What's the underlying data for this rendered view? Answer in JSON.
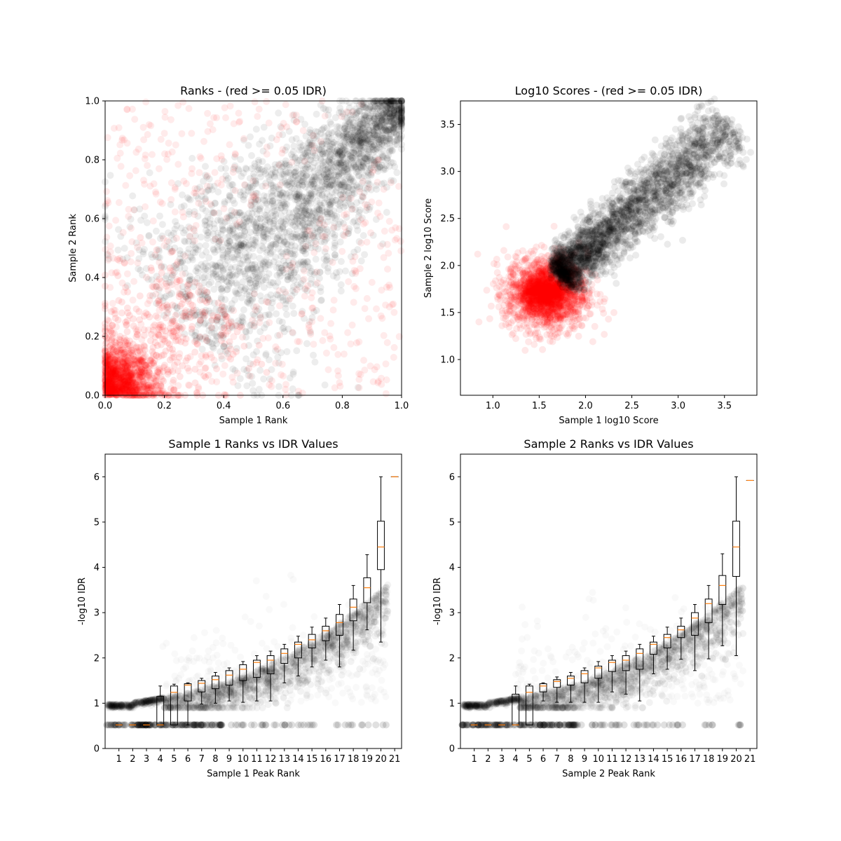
{
  "chart_data": [
    {
      "type": "scatter",
      "title": "Ranks - (red >= 0.05 IDR)",
      "xlabel": "Sample 1 Rank",
      "ylabel": "Sample 2 Rank",
      "xlim": [
        0,
        1
      ],
      "ylim": [
        0,
        1
      ],
      "xticks": [
        "0.0",
        "0.2",
        "0.4",
        "0.6",
        "0.8",
        "1.0"
      ],
      "yticks": [
        "0.0",
        "0.2",
        "0.4",
        "0.6",
        "0.8",
        "1.0"
      ],
      "grid": false,
      "colors": {
        "pass": "#000000",
        "fail": "#ff0000"
      },
      "series": [
        {
          "color": "fail",
          "approx_points": 2000,
          "description_free": true,
          "clusters": [
            {
              "x": 0.07,
              "y": 0.07,
              "spread": 0.08,
              "share": 0.55
            },
            {
              "x": 0.2,
              "y": 0.2,
              "spread": 0.12,
              "share": 0.2
            },
            {
              "x": 0.5,
              "y": 0.5,
              "spread": 0.35,
              "share": 0.25
            }
          ]
        },
        {
          "color": "pass",
          "approx_points": 4500,
          "trend": {
            "from": [
              0.25,
              0.25
            ],
            "to": [
              0.99,
              0.99
            ],
            "width": 0.12
          }
        }
      ]
    },
    {
      "type": "scatter",
      "title": "Log10 Scores - (red >= 0.05 IDR)",
      "xlabel": "Sample 1 log10 Score",
      "ylabel": "Sample 2 log10 Score",
      "xlim": [
        0.65,
        3.85
      ],
      "ylim": [
        0.62,
        3.75
      ],
      "xticks": [
        "1.0",
        "1.5",
        "2.0",
        "2.5",
        "3.0",
        "3.5"
      ],
      "yticks": [
        "1.0",
        "1.5",
        "2.0",
        "2.5",
        "3.0",
        "3.5"
      ],
      "grid": false,
      "colors": {
        "pass": "#000000",
        "fail": "#ff0000"
      },
      "series": [
        {
          "color": "fail",
          "approx_points": 2000,
          "center": [
            1.55,
            1.72
          ],
          "spread": 0.25
        },
        {
          "color": "pass",
          "approx_points": 4500,
          "trend": {
            "from": [
              1.7,
              1.9
            ],
            "to": [
              3.6,
              3.5
            ],
            "width": 0.15
          }
        }
      ]
    },
    {
      "type": "box",
      "title": "Sample 1 Ranks vs IDR Values",
      "xlabel": "Sample 1 Peak Rank",
      "ylabel": "-log10 IDR",
      "ylim": [
        0,
        6.5
      ],
      "xticks": [
        "1",
        "2",
        "3",
        "4",
        "5",
        "6",
        "7",
        "8",
        "9",
        "10",
        "11",
        "12",
        "13",
        "14",
        "15",
        "16",
        "17",
        "18",
        "19",
        "20",
        "21"
      ],
      "yticks": [
        "0",
        "1",
        "2",
        "3",
        "4",
        "5",
        "6"
      ],
      "boxes": [
        {
          "bin": 1,
          "q1": 0.52,
          "med": 0.52,
          "q3": 0.52,
          "lo": 0.52,
          "hi": 0.52
        },
        {
          "bin": 2,
          "q1": 0.52,
          "med": 0.52,
          "q3": 0.52,
          "lo": 0.52,
          "hi": 0.52
        },
        {
          "bin": 3,
          "q1": 0.52,
          "med": 0.52,
          "q3": 0.52,
          "lo": 0.52,
          "hi": 0.52
        },
        {
          "bin": 4,
          "q1": 0.52,
          "med": 0.52,
          "q3": 1.15,
          "lo": 0.52,
          "hi": 1.38
        },
        {
          "bin": 5,
          "q1": 0.52,
          "med": 1.24,
          "q3": 1.38,
          "lo": 0.52,
          "hi": 1.42
        },
        {
          "bin": 6,
          "q1": 1.05,
          "med": 1.4,
          "q3": 1.43,
          "lo": 0.52,
          "hi": 1.45
        },
        {
          "bin": 7,
          "q1": 1.25,
          "med": 1.44,
          "q3": 1.5,
          "lo": 0.98,
          "hi": 1.55
        },
        {
          "bin": 8,
          "q1": 1.32,
          "med": 1.52,
          "q3": 1.6,
          "lo": 1.0,
          "hi": 1.68
        },
        {
          "bin": 9,
          "q1": 1.4,
          "med": 1.62,
          "q3": 1.72,
          "lo": 1.05,
          "hi": 1.78
        },
        {
          "bin": 10,
          "q1": 1.5,
          "med": 1.75,
          "q3": 1.85,
          "lo": 1.02,
          "hi": 1.92
        },
        {
          "bin": 11,
          "q1": 1.57,
          "med": 1.9,
          "q3": 1.95,
          "lo": 1.05,
          "hi": 2.05
        },
        {
          "bin": 12,
          "q1": 1.65,
          "med": 1.95,
          "q3": 2.05,
          "lo": 1.05,
          "hi": 2.15
        },
        {
          "bin": 13,
          "q1": 1.88,
          "med": 2.1,
          "q3": 2.2,
          "lo": 1.45,
          "hi": 2.3
        },
        {
          "bin": 14,
          "q1": 2.0,
          "med": 2.3,
          "q3": 2.35,
          "lo": 1.6,
          "hi": 2.48
        },
        {
          "bin": 15,
          "q1": 2.22,
          "med": 2.4,
          "q3": 2.52,
          "lo": 1.8,
          "hi": 2.68
        },
        {
          "bin": 16,
          "q1": 2.38,
          "med": 2.6,
          "q3": 2.7,
          "lo": 1.95,
          "hi": 2.88
        },
        {
          "bin": 17,
          "q1": 2.5,
          "med": 2.78,
          "q3": 2.96,
          "lo": 1.8,
          "hi": 3.18
        },
        {
          "bin": 18,
          "q1": 2.82,
          "med": 3.12,
          "q3": 3.3,
          "lo": 2.17,
          "hi": 3.6
        },
        {
          "bin": 19,
          "q1": 3.22,
          "med": 3.55,
          "q3": 3.77,
          "lo": 2.62,
          "hi": 4.28
        },
        {
          "bin": 20,
          "q1": 3.95,
          "med": 4.45,
          "q3": 5.02,
          "lo": 2.35,
          "hi": 6.0
        },
        {
          "bin": 21,
          "q1": 6.0,
          "med": 6.0,
          "q3": 6.0,
          "lo": 6.0,
          "hi": 6.0
        }
      ]
    },
    {
      "type": "box",
      "title": "Sample 2 Ranks vs IDR Values",
      "xlabel": "Sample 2 Peak Rank",
      "ylabel": "-log10 IDR",
      "ylim": [
        0,
        6.5
      ],
      "xticks": [
        "1",
        "2",
        "3",
        "4",
        "5",
        "6",
        "7",
        "8",
        "9",
        "10",
        "11",
        "12",
        "13",
        "14",
        "15",
        "16",
        "17",
        "18",
        "19",
        "20",
        "21"
      ],
      "yticks": [
        "0",
        "1",
        "2",
        "3",
        "4",
        "5",
        "6"
      ],
      "boxes": [
        {
          "bin": 1,
          "q1": 0.52,
          "med": 0.52,
          "q3": 0.52,
          "lo": 0.52,
          "hi": 0.52
        },
        {
          "bin": 2,
          "q1": 0.52,
          "med": 0.52,
          "q3": 0.52,
          "lo": 0.52,
          "hi": 0.52
        },
        {
          "bin": 3,
          "q1": 0.52,
          "med": 0.52,
          "q3": 0.52,
          "lo": 0.52,
          "hi": 0.52
        },
        {
          "bin": 4,
          "q1": 0.52,
          "med": 0.52,
          "q3": 1.2,
          "lo": 0.52,
          "hi": 1.38
        },
        {
          "bin": 5,
          "q1": 0.52,
          "med": 1.24,
          "q3": 1.38,
          "lo": 0.52,
          "hi": 1.42
        },
        {
          "bin": 6,
          "q1": 1.25,
          "med": 1.38,
          "q3": 1.43,
          "lo": 1.05,
          "hi": 1.45
        },
        {
          "bin": 7,
          "q1": 1.35,
          "med": 1.48,
          "q3": 1.52,
          "lo": 1.02,
          "hi": 1.58
        },
        {
          "bin": 8,
          "q1": 1.4,
          "med": 1.55,
          "q3": 1.6,
          "lo": 1.02,
          "hi": 1.68
        },
        {
          "bin": 9,
          "q1": 1.45,
          "med": 1.65,
          "q3": 1.72,
          "lo": 1.02,
          "hi": 1.78
        },
        {
          "bin": 10,
          "q1": 1.55,
          "med": 1.78,
          "q3": 1.82,
          "lo": 1.02,
          "hi": 1.92
        },
        {
          "bin": 11,
          "q1": 1.7,
          "med": 1.9,
          "q3": 1.95,
          "lo": 1.25,
          "hi": 2.05
        },
        {
          "bin": 12,
          "q1": 1.72,
          "med": 1.95,
          "q3": 2.05,
          "lo": 1.2,
          "hi": 2.15
        },
        {
          "bin": 13,
          "q1": 1.75,
          "med": 2.1,
          "q3": 2.2,
          "lo": 1.05,
          "hi": 2.3
        },
        {
          "bin": 14,
          "q1": 2.08,
          "med": 2.3,
          "q3": 2.35,
          "lo": 1.65,
          "hi": 2.48
        },
        {
          "bin": 15,
          "q1": 2.22,
          "med": 2.45,
          "q3": 2.52,
          "lo": 1.75,
          "hi": 2.68
        },
        {
          "bin": 16,
          "q1": 2.45,
          "med": 2.62,
          "q3": 2.7,
          "lo": 1.97,
          "hi": 2.88
        },
        {
          "bin": 17,
          "q1": 2.5,
          "med": 2.88,
          "q3": 3.0,
          "lo": 1.72,
          "hi": 3.18
        },
        {
          "bin": 18,
          "q1": 2.78,
          "med": 3.2,
          "q3": 3.3,
          "lo": 1.98,
          "hi": 3.6
        },
        {
          "bin": 19,
          "q1": 3.18,
          "med": 3.6,
          "q3": 3.82,
          "lo": 2.27,
          "hi": 4.3
        },
        {
          "bin": 20,
          "q1": 3.8,
          "med": 4.45,
          "q3": 5.02,
          "lo": 2.05,
          "hi": 6.0
        },
        {
          "bin": 21,
          "q1": 5.92,
          "med": 5.92,
          "q3": 5.92,
          "lo": 5.92,
          "hi": 5.92
        }
      ]
    }
  ]
}
